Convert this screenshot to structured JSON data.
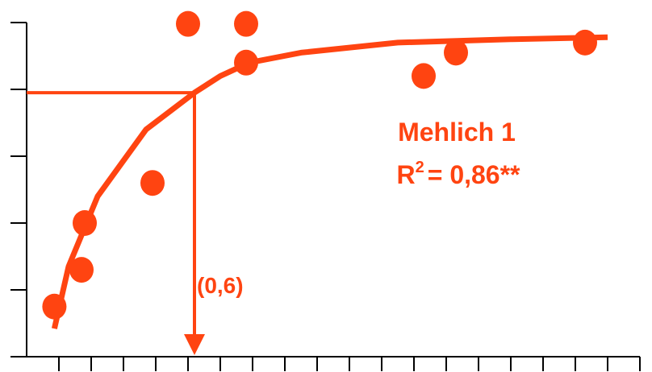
{
  "chart_data": {
    "type": "scatter",
    "title": "",
    "xlabel": "",
    "ylabel": "",
    "xlim": [
      0,
      19
    ],
    "ylim": [
      0,
      5
    ],
    "grid": false,
    "x_ticks": [
      1,
      2,
      3,
      4,
      5,
      6,
      7,
      8,
      9,
      10,
      11,
      12,
      13,
      14,
      15,
      16,
      17,
      18,
      19
    ],
    "y_ticks": [
      1,
      2,
      3,
      4,
      5
    ],
    "series": [
      {
        "kind": "points",
        "x": [
          0.86,
          1.7,
          1.8,
          3.9,
          5.0,
          6.8,
          6.8,
          12.3,
          13.3,
          17.3
        ],
        "y": [
          0.75,
          1.3,
          2.0,
          2.6,
          4.98,
          4.98,
          4.4,
          4.2,
          4.55,
          4.7
        ]
      },
      {
        "kind": "fit-curve",
        "x": [
          0.86,
          1.3,
          2.2,
          3.7,
          5.2,
          6.0,
          6.9,
          8.5,
          11.5,
          15.0,
          18.0
        ],
        "y": [
          0.42,
          1.35,
          2.4,
          3.4,
          3.95,
          4.2,
          4.4,
          4.55,
          4.7,
          4.75,
          4.78
        ]
      }
    ],
    "reference": {
      "x": 5.2,
      "y": 3.95
    },
    "annotations": {
      "method": "Mehlich 1",
      "r2_base": "R",
      "r2_sup": "2",
      "r2_value": "= 0,86**",
      "arrow_label": "(0,6)"
    },
    "colors": {
      "accent": "#ff4411",
      "axis": "#000000",
      "background": "#ffffff"
    }
  }
}
